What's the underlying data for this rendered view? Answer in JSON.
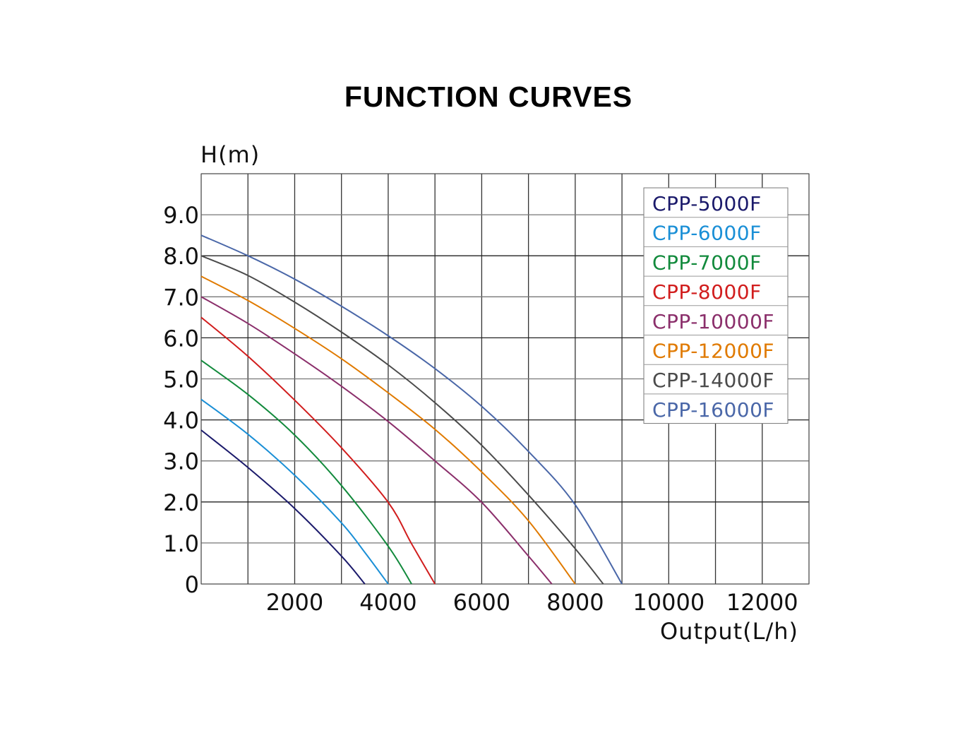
{
  "chart_data": {
    "type": "line",
    "title": "FUNCTION CURVES",
    "ylabel": "H(m)",
    "xlabel": "Output(L/h)",
    "xlim": [
      0,
      13000
    ],
    "ylim": [
      0,
      10
    ],
    "x_ticks": [
      2000,
      4000,
      6000,
      8000,
      10000,
      12000
    ],
    "x_tick_labels": [
      "2000",
      "4000",
      "6000",
      "8000",
      "10000",
      "12000"
    ],
    "y_ticks": [
      0,
      1,
      2,
      3,
      4,
      5,
      6,
      7,
      8,
      9
    ],
    "y_tick_labels": [
      "0",
      "1.0",
      "2.0",
      "3.0",
      "4.0",
      "5.0",
      "6.0",
      "7.0",
      "8.0",
      "9.0"
    ],
    "grid": true,
    "legend_position": "top-right",
    "series": [
      {
        "name": "CPP-5000F",
        "color": "#1b1a6b",
        "points": [
          [
            0,
            3.75
          ],
          [
            1000,
            2.84
          ],
          [
            2000,
            1.84
          ],
          [
            3000,
            0.68
          ],
          [
            3500,
            0
          ]
        ]
      },
      {
        "name": "CPP-6000F",
        "color": "#1a8fd6",
        "points": [
          [
            0,
            4.5
          ],
          [
            1000,
            3.65
          ],
          [
            2000,
            2.65
          ],
          [
            3000,
            1.49
          ],
          [
            3500,
            0.77
          ],
          [
            4000,
            0
          ]
        ]
      },
      {
        "name": "CPP-7000F",
        "color": "#128a3c",
        "points": [
          [
            0,
            5.45
          ],
          [
            1000,
            4.62
          ],
          [
            2000,
            3.63
          ],
          [
            3000,
            2.4
          ],
          [
            4000,
            0.92
          ],
          [
            4500,
            0
          ]
        ]
      },
      {
        "name": "CPP-8000F",
        "color": "#d11d1d",
        "points": [
          [
            0,
            6.5
          ],
          [
            1000,
            5.55
          ],
          [
            2000,
            4.48
          ],
          [
            3000,
            3.32
          ],
          [
            4000,
            1.99
          ],
          [
            4500,
            0.98
          ],
          [
            5000,
            0
          ]
        ]
      },
      {
        "name": "CPP-10000F",
        "color": "#8b2f6b",
        "points": [
          [
            0,
            7.0
          ],
          [
            1000,
            6.35
          ],
          [
            2000,
            5.61
          ],
          [
            3000,
            4.82
          ],
          [
            4000,
            3.96
          ],
          [
            5000,
            3.0
          ],
          [
            6000,
            1.99
          ],
          [
            7000,
            0.68
          ],
          [
            7500,
            0
          ]
        ]
      },
      {
        "name": "CPP-12000F",
        "color": "#e07a00",
        "points": [
          [
            0,
            7.5
          ],
          [
            1000,
            6.91
          ],
          [
            2000,
            6.23
          ],
          [
            3000,
            5.49
          ],
          [
            4000,
            4.66
          ],
          [
            5000,
            3.77
          ],
          [
            6000,
            2.73
          ],
          [
            7000,
            1.54
          ],
          [
            8000,
            0
          ]
        ]
      },
      {
        "name": "CPP-14000F",
        "color": "#4b4b4b",
        "points": [
          [
            0,
            8.0
          ],
          [
            1000,
            7.52
          ],
          [
            2000,
            6.87
          ],
          [
            3000,
            6.14
          ],
          [
            4000,
            5.34
          ],
          [
            5000,
            4.42
          ],
          [
            6000,
            3.38
          ],
          [
            7000,
            2.17
          ],
          [
            8000,
            0.86
          ],
          [
            8600,
            0
          ]
        ]
      },
      {
        "name": "CPP-16000F",
        "color": "#4a67a8",
        "points": [
          [
            0,
            8.5
          ],
          [
            1000,
            8.0
          ],
          [
            2000,
            7.43
          ],
          [
            3000,
            6.77
          ],
          [
            4000,
            6.05
          ],
          [
            5000,
            5.25
          ],
          [
            6000,
            4.33
          ],
          [
            7000,
            3.23
          ],
          [
            8000,
            1.93
          ],
          [
            9000,
            0
          ]
        ]
      }
    ]
  }
}
